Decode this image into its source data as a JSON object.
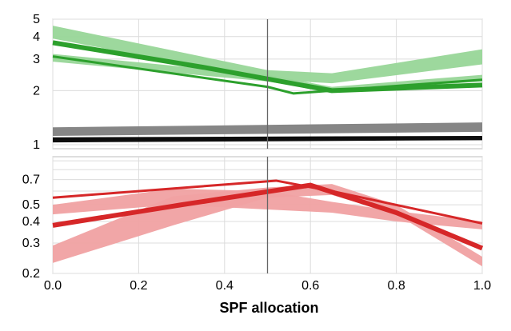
{
  "chart_data": {
    "type": "line",
    "xlabel": "SPF allocation",
    "ylabel": "",
    "xlim": [
      0,
      1
    ],
    "ylim": [
      0.2,
      5
    ],
    "yscale": "log",
    "ylim_segments": [
      [
        0.2,
        0.95
      ],
      [
        0.95,
        5
      ]
    ],
    "grid": true,
    "x_ticks": [
      "0.0",
      "0.2",
      "0.4",
      "0.6",
      "0.8",
      "1.0"
    ],
    "y_ticks": [
      "5",
      "4",
      "3",
      "2",
      "1",
      "0.7",
      "0.5",
      "0.4",
      "0.3",
      "0.2"
    ],
    "reference_line_x": 0.5,
    "colors": {
      "green": "#2ca02c",
      "green_light": "#98d698",
      "gray": "#7f7f7f",
      "black": "#000000",
      "red": "#d62728",
      "red_light": "#f0a1a2"
    },
    "series": [
      {
        "color": "green_light",
        "style": "band",
        "x": [
          0,
          0.5,
          0.65,
          1
        ],
        "low": [
          3.9,
          2.3,
          2.2,
          2.8
        ],
        "high": [
          4.6,
          2.6,
          2.5,
          3.4
        ]
      },
      {
        "color": "green",
        "style": "thick",
        "x": [
          0,
          0.35,
          0.65,
          1
        ],
        "y": [
          3.7,
          2.7,
          2.0,
          2.15
        ]
      },
      {
        "color": "green",
        "style": "thin",
        "x": [
          0,
          0.5,
          0.56,
          1
        ],
        "y": [
          3.1,
          2.1,
          1.93,
          2.3
        ]
      },
      {
        "color": "green_light",
        "style": "band",
        "x": [
          0,
          0.5,
          0.65,
          1
        ],
        "low": [
          2.9,
          2.25,
          1.97,
          2.25
        ],
        "high": [
          3.2,
          2.45,
          2.1,
          2.45
        ]
      },
      {
        "color": "gray",
        "style": "band",
        "x": [
          0,
          1
        ],
        "low": [
          1.12,
          1.18
        ],
        "high": [
          1.25,
          1.33
        ]
      },
      {
        "color": "black",
        "style": "band",
        "x": [
          0,
          1
        ],
        "low": [
          1.03,
          1.06
        ],
        "high": [
          1.1,
          1.12
        ]
      },
      {
        "color": "red_light",
        "style": "band",
        "x": [
          0,
          0.28,
          0.5,
          0.65,
          0.8,
          1
        ],
        "low": [
          0.23,
          0.38,
          0.55,
          0.57,
          0.44,
          0.22
        ],
        "high": [
          0.29,
          0.56,
          0.63,
          0.66,
          0.5,
          0.25
        ]
      },
      {
        "color": "red_light",
        "style": "band",
        "x": [
          0,
          0.28,
          0.5,
          0.65,
          0.8,
          1
        ],
        "low": [
          0.44,
          0.5,
          0.47,
          0.45,
          0.4,
          0.36
        ],
        "high": [
          0.5,
          0.62,
          0.6,
          0.52,
          0.46,
          0.4
        ]
      },
      {
        "color": "red",
        "style": "thick",
        "x": [
          0,
          0.3,
          0.6,
          0.8,
          1
        ],
        "y": [
          0.38,
          0.5,
          0.65,
          0.45,
          0.28
        ]
      },
      {
        "color": "red",
        "style": "thin",
        "x": [
          0,
          0.52,
          0.65,
          1
        ],
        "y": [
          0.55,
          0.69,
          0.6,
          0.39
        ]
      }
    ]
  }
}
